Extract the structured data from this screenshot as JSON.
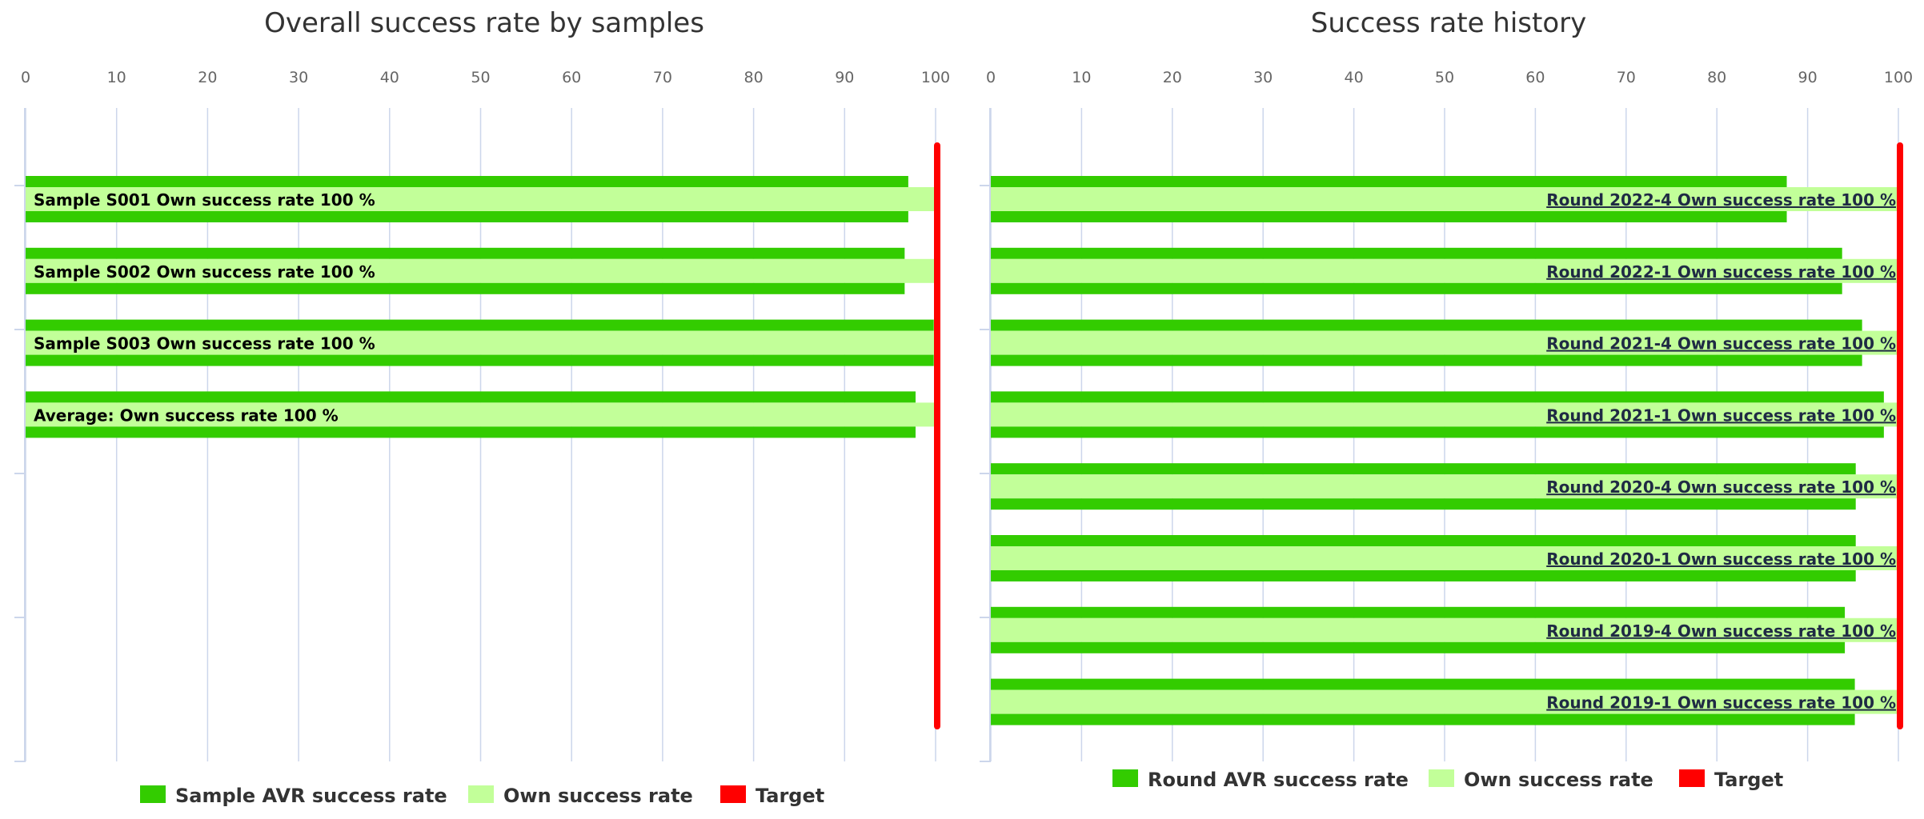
{
  "colors": {
    "avr": "#33cc00",
    "own": "#c2ff99",
    "target": "#ff0000",
    "grid": "#ccd6eb"
  },
  "chart_data": [
    {
      "type": "bar",
      "orientation": "horizontal",
      "title": "Overall success rate by samples",
      "xlim": [
        0,
        100
      ],
      "ticks": [
        0,
        10,
        20,
        30,
        40,
        50,
        60,
        70,
        80,
        90,
        100
      ],
      "categories": [
        "Sample S001 Own success rate 100 %",
        "Sample S002 Own success rate 100 %",
        "Sample S003 Own success rate 100 %",
        "Average: Own success rate 100 %"
      ],
      "series": [
        {
          "name": "Sample AVR success rate",
          "values": [
            97,
            96.6,
            99.8,
            97.8
          ]
        },
        {
          "name": "Own success rate",
          "values": [
            100,
            100,
            100,
            100
          ]
        }
      ],
      "target": 100,
      "target_label": "Target",
      "label_side": "left",
      "legend": "bottom",
      "grid": true
    },
    {
      "type": "bar",
      "orientation": "horizontal",
      "title": "Success rate history",
      "xlim": [
        0,
        100
      ],
      "ticks": [
        0,
        10,
        20,
        30,
        40,
        50,
        60,
        70,
        80,
        90,
        100
      ],
      "categories": [
        "Round 2022-4 Own success rate 100 %",
        "Round 2022-1 Own success rate 100 %",
        "Round 2021-4 Own success rate 100 %",
        "Round 2021-1 Own success rate 100 %",
        "Round 2020-4 Own success rate 100 %",
        "Round 2020-1 Own success rate 100 %",
        "Round 2019-4 Own success rate 100 %",
        "Round 2019-1 Own success rate 100 %"
      ],
      "series": [
        {
          "name": "Round AVR success rate",
          "values": [
            87.7,
            93.8,
            96,
            98.4,
            95.3,
            95.3,
            94.1,
            95.2
          ]
        },
        {
          "name": "Own success rate",
          "values": [
            100,
            100,
            100,
            100,
            100,
            100,
            100,
            100
          ]
        }
      ],
      "target": 100,
      "target_label": "Target",
      "label_side": "right",
      "legend": "bottom",
      "grid": true
    }
  ]
}
